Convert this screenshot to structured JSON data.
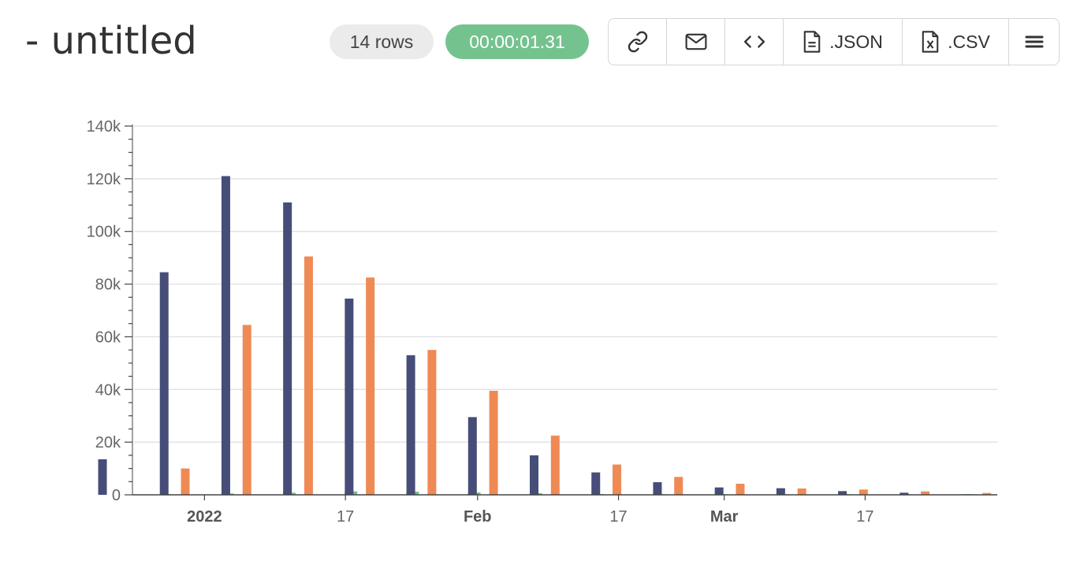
{
  "header": {
    "title": "- untitled",
    "rows_badge": "14 rows",
    "duration_badge": "00:00:01.31"
  },
  "toolbar": {
    "link_icon": "link-icon",
    "email_icon": "envelope-icon",
    "embed_icon": "code-brackets-icon",
    "json_label": ".JSON",
    "json_icon": "file-text-icon",
    "csv_label": ".CSV",
    "csv_icon": "file-x-icon",
    "menu_icon": "hamburger-menu-icon"
  },
  "colors": {
    "series_navy": "#464d78",
    "series_orange": "#ef8a55",
    "series_teal": "#5aa9c6",
    "series_green": "#6cc38e",
    "badge_green": "#74c38e"
  },
  "chart_data": {
    "type": "bar",
    "title": "",
    "xlabel": "",
    "ylabel": "",
    "ylim": [
      0,
      140000
    ],
    "y_ticks": [
      "0",
      "20k",
      "40k",
      "60k",
      "80k",
      "100k",
      "120k",
      "140k"
    ],
    "grid": true,
    "x_axis": "weekly dates, 2022",
    "x_tick_labels": [
      "2022",
      "17",
      "Feb",
      "17",
      "Mar",
      "17"
    ],
    "categories": [
      "2021-12-27",
      "2022-01-03",
      "2022-01-10",
      "2022-01-17",
      "2022-01-24",
      "2022-01-31",
      "2022-02-07",
      "2022-02-14",
      "2022-02-21",
      "2022-02-28",
      "2022-03-07",
      "2022-03-14",
      "2022-03-21",
      "2022-03-28"
    ],
    "series": [
      {
        "color": "#464d78",
        "values": [
          13500,
          84500,
          121000,
          111000,
          74500,
          53000,
          29500,
          15000,
          8500,
          4800,
          2800,
          2500,
          1400,
          800
        ]
      },
      {
        "color": "#5aa9c6",
        "values": [
          150,
          500,
          800,
          1000,
          900,
          700,
          500,
          300,
          150,
          80,
          50,
          40,
          20,
          10
        ]
      },
      {
        "color": "#6cc38e",
        "values": [
          150,
          500,
          800,
          1300,
          1200,
          900,
          600,
          300,
          150,
          80,
          50,
          40,
          20,
          10
        ]
      },
      {
        "color": "#ef8a55",
        "values": [
          10000,
          64500,
          90500,
          82500,
          55000,
          39500,
          22500,
          11500,
          6800,
          4200,
          2400,
          2000,
          1300,
          700
        ]
      }
    ]
  }
}
